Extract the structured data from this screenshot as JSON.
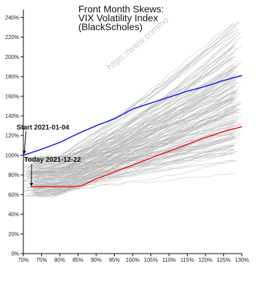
{
  "chart_data": {
    "type": "line",
    "title_lines": [
      "Front Month Skews:",
      "VIX Volatility Index",
      "(BlackScholes)"
    ],
    "watermark": "https://www.commo",
    "x": [
      70,
      75,
      80,
      85,
      90,
      95,
      100,
      105,
      110,
      115,
      120,
      125,
      130
    ],
    "x_tick_labels": [
      "70%",
      "75%",
      "80%",
      "85%",
      "90%",
      "95%",
      "100%",
      "105%",
      "110%",
      "115%",
      "120%",
      "125%",
      "130%"
    ],
    "y_tick_values": [
      0,
      20,
      40,
      60,
      80,
      100,
      120,
      140,
      160,
      180,
      200,
      220,
      240
    ],
    "y_tick_labels": [
      "0%",
      "20%",
      "40%",
      "60%",
      "80%",
      "100%",
      "120%",
      "140%",
      "160%",
      "180%",
      "200%",
      "220%",
      "240%"
    ],
    "xlim": [
      70,
      130
    ],
    "ylim": [
      0,
      248
    ],
    "grid": false,
    "series": [
      {
        "name": "Start 2021-01-04",
        "color": "#1a1aee",
        "x": [
          70,
          75,
          80,
          85,
          90,
          95,
          100,
          105,
          110,
          115,
          120,
          125,
          130
        ],
        "values": [
          100,
          106,
          113,
          122,
          130,
          137,
          147,
          153,
          159,
          165,
          170,
          176,
          181
        ]
      },
      {
        "name": "Today 2021-12-22",
        "color": "#ee1a1a",
        "x": [
          72,
          76,
          80,
          84,
          86,
          90,
          95,
          100,
          105,
          110,
          115,
          120,
          125,
          130
        ],
        "values": [
          68,
          68,
          68,
          68,
          69,
          76,
          83,
          90,
          97,
          104,
          111,
          118,
          124,
          129
        ]
      }
    ],
    "background_series_color": "#b5b5b5"
  }
}
